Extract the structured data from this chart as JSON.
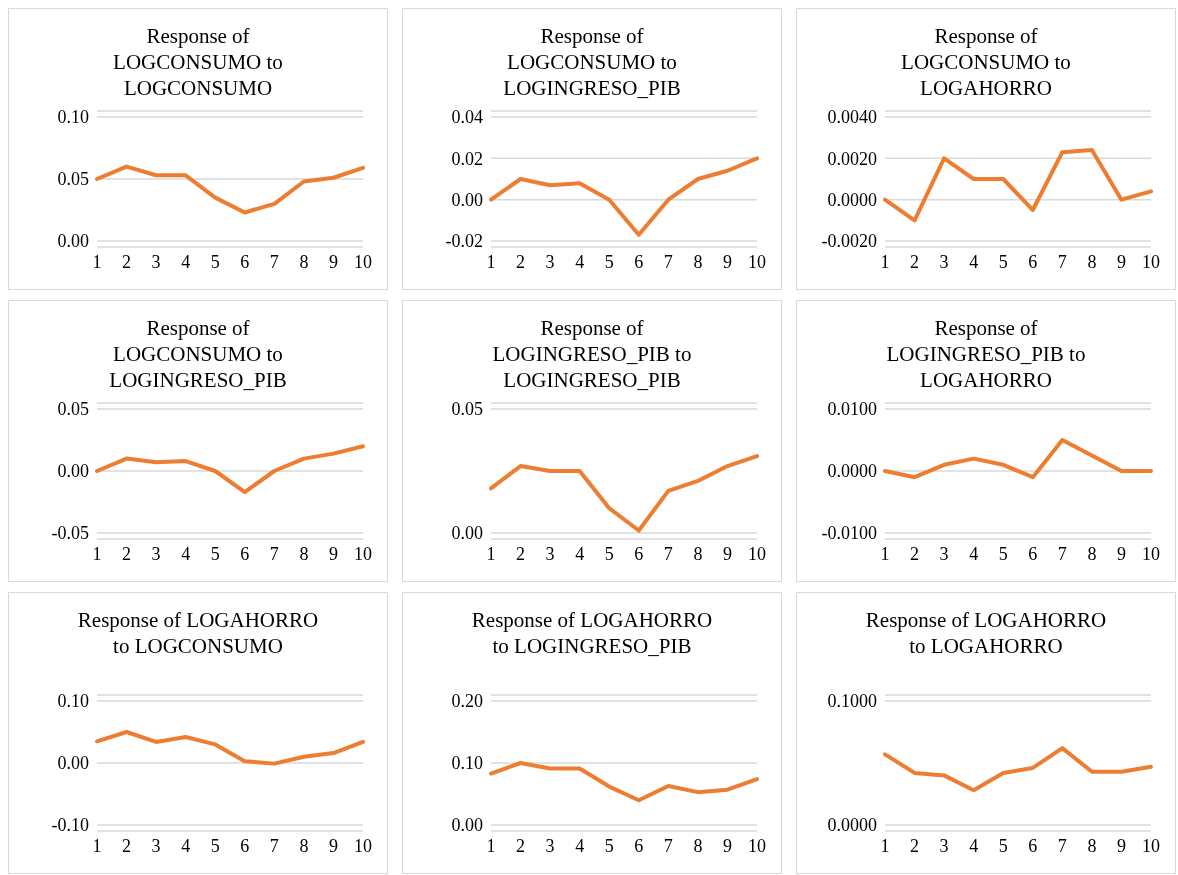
{
  "chart_data": [
    {
      "type": "line",
      "title": "Response of LOGCONSUMO to LOGCONSUMO",
      "categories": [
        "1",
        "2",
        "3",
        "4",
        "5",
        "6",
        "7",
        "8",
        "9",
        "10"
      ],
      "values": [
        0.05,
        0.06,
        0.053,
        0.053,
        0.035,
        0.023,
        0.03,
        0.048,
        0.051,
        0.059
      ],
      "color": "#ed7d31",
      "ylim": [
        0,
        0.1
      ],
      "yticks": [
        {
          "value": 0,
          "label": "0.00"
        },
        {
          "value": 0.05,
          "label": "0.05"
        },
        {
          "value": 0.1,
          "label": "0.10"
        }
      ],
      "grid": "y",
      "marker": "none",
      "line_style": "solid"
    },
    {
      "type": "line",
      "title": "Response of LOGCONSUMO to LOGINGRESO_PIB",
      "categories": [
        "1",
        "2",
        "3",
        "4",
        "5",
        "6",
        "7",
        "8",
        "9",
        "10"
      ],
      "values": [
        0,
        0.01,
        0.007,
        0.008,
        0,
        -0.017,
        0,
        0.01,
        0.014,
        0.02
      ],
      "color": "#ed7d31",
      "ylim": [
        -0.02,
        0.04
      ],
      "yticks": [
        {
          "value": -0.02,
          "label": "-0.02"
        },
        {
          "value": 0,
          "label": "0.00"
        },
        {
          "value": 0.02,
          "label": "0.02"
        },
        {
          "value": 0.04,
          "label": "0.04"
        }
      ],
      "grid": "y",
      "marker": "none",
      "line_style": "solid"
    },
    {
      "type": "line",
      "title": "Response of LOGCONSUMO to LOGAHORRO",
      "categories": [
        "1",
        "2",
        "3",
        "4",
        "5",
        "6",
        "7",
        "8",
        "9",
        "10"
      ],
      "values": [
        0,
        -0.001,
        0.002,
        0.001,
        0.001,
        -0.0005,
        0.0023,
        0.0024,
        0,
        0.0004
      ],
      "color": "#ed7d31",
      "ylim": [
        -0.002,
        0.004
      ],
      "yticks": [
        {
          "value": -0.002,
          "label": "-0.0020"
        },
        {
          "value": 0,
          "label": "0.0000"
        },
        {
          "value": 0.002,
          "label": "0.0020"
        },
        {
          "value": 0.004,
          "label": "0.0040"
        }
      ],
      "grid": "y",
      "marker": "none",
      "line_style": "solid"
    },
    {
      "type": "line",
      "title": "Response of LOGCONSUMO to LOGINGRESO_PIB",
      "categories": [
        "1",
        "2",
        "3",
        "4",
        "5",
        "6",
        "7",
        "8",
        "9",
        "10"
      ],
      "values": [
        0,
        0.01,
        0.007,
        0.008,
        0,
        -0.017,
        0,
        0.01,
        0.014,
        0.02
      ],
      "color": "#ed7d31",
      "ylim": [
        -0.05,
        0.05
      ],
      "yticks": [
        {
          "value": -0.05,
          "label": "-0.05"
        },
        {
          "value": 0,
          "label": "0.00"
        },
        {
          "value": 0.05,
          "label": "0.05"
        }
      ],
      "grid": "y",
      "marker": "none",
      "line_style": "solid"
    },
    {
      "type": "line",
      "title": "Response of LOGINGRESO_PIB to LOGINGRESO_PIB",
      "categories": [
        "1",
        "2",
        "3",
        "4",
        "5",
        "6",
        "7",
        "8",
        "9",
        "10"
      ],
      "values": [
        0.018,
        0.027,
        0.025,
        0.025,
        0.01,
        0.001,
        0.017,
        0.021,
        0.027,
        0.031
      ],
      "color": "#ed7d31",
      "ylim": [
        0,
        0.05
      ],
      "yticks": [
        {
          "value": 0,
          "label": "0.00"
        },
        {
          "value": 0.05,
          "label": "0.05"
        }
      ],
      "grid": "y",
      "marker": "none",
      "line_style": "solid"
    },
    {
      "type": "line",
      "title": "Response of LOGINGRESO_PIB to LOGAHORRO",
      "categories": [
        "1",
        "2",
        "3",
        "4",
        "5",
        "6",
        "7",
        "8",
        "9",
        "10"
      ],
      "values": [
        0,
        -0.001,
        0.001,
        0.002,
        0.001,
        -0.001,
        0.005,
        0.0025,
        0,
        0
      ],
      "color": "#ed7d31",
      "ylim": [
        -0.01,
        0.01
      ],
      "yticks": [
        {
          "value": -0.01,
          "label": "-0.0100"
        },
        {
          "value": 0,
          "label": "0.0000"
        },
        {
          "value": 0.01,
          "label": "0.0100"
        }
      ],
      "grid": "y",
      "marker": "none",
      "line_style": "solid"
    },
    {
      "type": "line",
      "title": "Response of LOGAHORRO to LOGCONSUMO",
      "categories": [
        "1",
        "2",
        "3",
        "4",
        "5",
        "6",
        "7",
        "8",
        "9",
        "10"
      ],
      "values": [
        0.035,
        0.05,
        0.034,
        0.042,
        0.03,
        0.003,
        -0.001,
        0.01,
        0.016,
        0.034
      ],
      "color": "#ed7d31",
      "ylim": [
        -0.1,
        0.1
      ],
      "yticks": [
        {
          "value": -0.1,
          "label": "-0.10"
        },
        {
          "value": 0,
          "label": "0.00"
        },
        {
          "value": 0.1,
          "label": "0.10"
        }
      ],
      "grid": "y",
      "marker": "none",
      "line_style": "solid"
    },
    {
      "type": "line",
      "title": "Response of LOGAHORRO to LOGINGRESO_PIB",
      "categories": [
        "1",
        "2",
        "3",
        "4",
        "5",
        "6",
        "7",
        "8",
        "9",
        "10"
      ],
      "values": [
        0.083,
        0.1,
        0.091,
        0.091,
        0.062,
        0.04,
        0.063,
        0.053,
        0.057,
        0.074
      ],
      "color": "#ed7d31",
      "ylim": [
        0,
        0.2
      ],
      "yticks": [
        {
          "value": 0,
          "label": "0.00"
        },
        {
          "value": 0.1,
          "label": "0.10"
        },
        {
          "value": 0.2,
          "label": "0.20"
        }
      ],
      "grid": "y",
      "marker": "none",
      "line_style": "solid"
    },
    {
      "type": "line",
      "title": "Response of LOGAHORRO to LOGAHORRO",
      "categories": [
        "1",
        "2",
        "3",
        "4",
        "5",
        "6",
        "7",
        "8",
        "9",
        "10"
      ],
      "values": [
        0.057,
        0.042,
        0.04,
        0.028,
        0.042,
        0.046,
        0.062,
        0.043,
        0.043,
        0.047
      ],
      "color": "#ed7d31",
      "ylim": [
        0,
        0.1
      ],
      "yticks": [
        {
          "value": 0,
          "label": "0.0000"
        },
        {
          "value": 0.1,
          "label": "0.1000"
        }
      ],
      "grid": "y",
      "marker": "none",
      "line_style": "solid"
    }
  ]
}
